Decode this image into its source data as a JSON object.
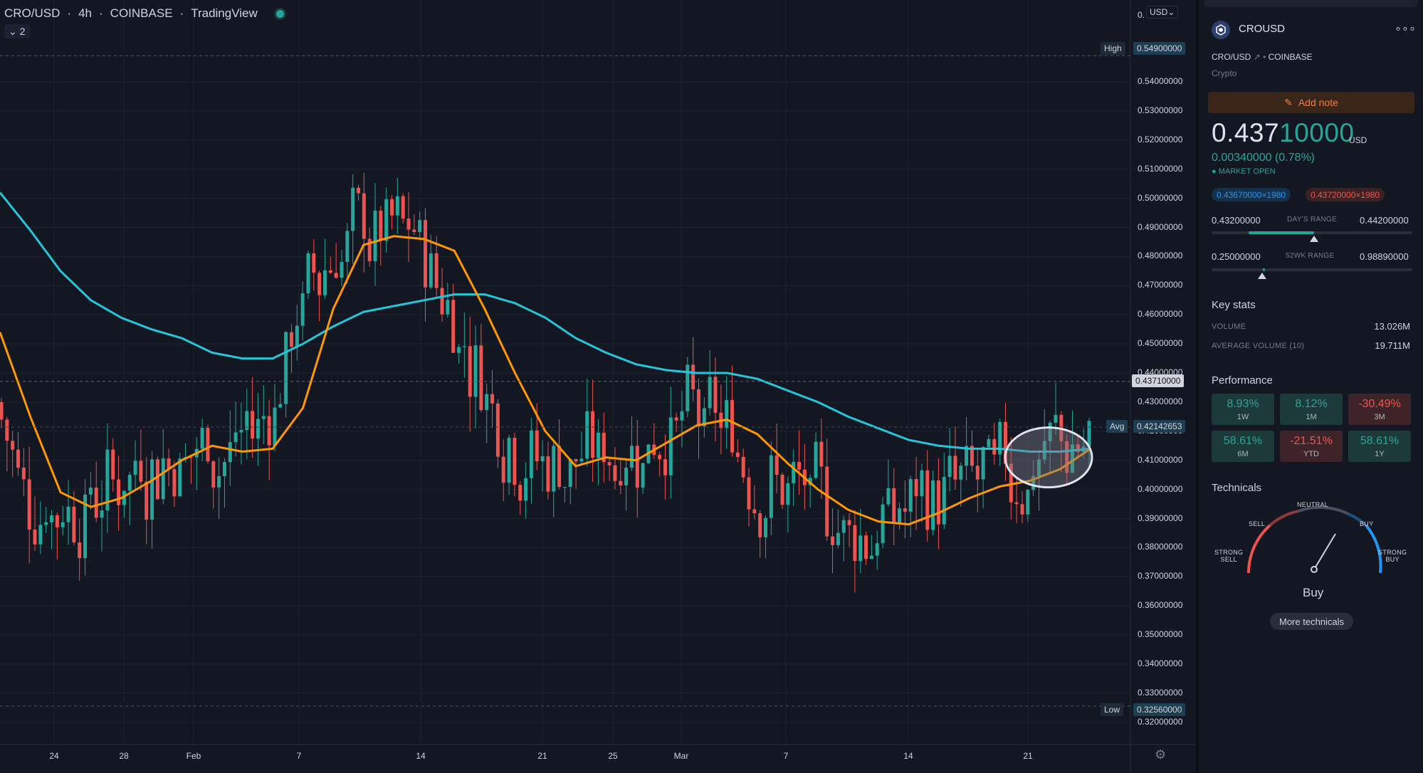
{
  "header": {
    "symbol": "CRO/USD",
    "interval": "4h",
    "exchange": "COINBASE",
    "source": "TradingView",
    "collapse_count": "2",
    "currency_button": "USD"
  },
  "chart_data": {
    "type": "candlestick",
    "x_tick_labels": [
      "24",
      "28",
      "Feb",
      "7",
      "14",
      "21",
      "25",
      "Mar",
      "7",
      "14",
      "21"
    ],
    "y_tick_labels": [
      "0.32000000",
      "0.33000000",
      "0.34000000",
      "0.35000000",
      "0.36000000",
      "0.37000000",
      "0.38000000",
      "0.39000000",
      "0.40000000",
      "0.41000000",
      "0.42000000",
      "0.43000000",
      "0.44000000",
      "0.45000000",
      "0.46000000",
      "0.47000000",
      "0.48000000",
      "0.49000000",
      "0.50000000",
      "0.51000000",
      "0.52000000",
      "0.53000000",
      "0.54000000"
    ],
    "y_range": [
      0.318,
      0.563
    ],
    "high": {
      "label": "High",
      "value": "0.54900000"
    },
    "low": {
      "label": "Low",
      "value": "0.32560000"
    },
    "avg": {
      "label": "Avg",
      "value": "0.42142653"
    },
    "last_price": "0.43710000",
    "partial_top_tick": "0.",
    "up_color": "#26a69a",
    "down_color": "#ef5350",
    "series": [
      {
        "type": "moving-average",
        "color": "#26c6da",
        "values": [
          0.502,
          0.489,
          0.475,
          0.465,
          0.459,
          0.455,
          0.452,
          0.447,
          0.445,
          0.445,
          0.45,
          0.456,
          0.461,
          0.463,
          0.465,
          0.467,
          0.467,
          0.464,
          0.459,
          0.452,
          0.447,
          0.443,
          0.441,
          0.44,
          0.44,
          0.438,
          0.434,
          0.43,
          0.425,
          0.421,
          0.417,
          0.415,
          0.414,
          0.414,
          0.413,
          0.413,
          0.414
        ]
      },
      {
        "type": "moving-average",
        "color": "#ff9800",
        "values": [
          0.454,
          0.425,
          0.399,
          0.394,
          0.397,
          0.403,
          0.41,
          0.415,
          0.413,
          0.414,
          0.428,
          0.462,
          0.484,
          0.487,
          0.486,
          0.482,
          0.462,
          0.44,
          0.42,
          0.408,
          0.411,
          0.41,
          0.416,
          0.422,
          0.424,
          0.419,
          0.409,
          0.4,
          0.393,
          0.389,
          0.388,
          0.392,
          0.397,
          0.401,
          0.403,
          0.407,
          0.414
        ]
      }
    ],
    "annotation": "ellipse"
  },
  "panel": {
    "symbol": "CROUSD",
    "pair": "CRO/USD",
    "exchange": "COINBASE",
    "type": "Crypto",
    "add_note": "Add note",
    "price_main": "0.437",
    "price_tail": "10000",
    "currency": "USD",
    "change": "0.00340000 (0.78%)",
    "market_status": "MARKET OPEN",
    "bid": "0.43670000×1980",
    "ask": "0.43720000×1980",
    "days_range": {
      "low": "0.43200000",
      "label": "DAY'S RANGE",
      "high": "0.44200000",
      "position": 0.51
    },
    "wk52_range": {
      "low": "0.25000000",
      "label": "52WK RANGE",
      "high": "0.98890000",
      "position": 0.25
    },
    "key_stats": {
      "title": "Key stats",
      "volume_label": "VOLUME",
      "volume": "13.026M",
      "avg_volume_label": "AVERAGE VOLUME (10)",
      "avg_volume": "19.711M"
    },
    "performance": {
      "title": "Performance",
      "items": [
        {
          "value": "8.93%",
          "period": "1W"
        },
        {
          "value": "8.12%",
          "period": "1M"
        },
        {
          "value": "-30.49%",
          "period": "3M"
        },
        {
          "value": "58.61%",
          "period": "6M"
        },
        {
          "value": "-21.51%",
          "period": "YTD"
        },
        {
          "value": "58.61%",
          "period": "1Y"
        }
      ]
    },
    "technicals": {
      "title": "Technicals",
      "strong_sell_1": "STRONG",
      "strong_sell_2": "SELL",
      "sell": "SELL",
      "neutral": "NEUTRAL",
      "buy": "BUY",
      "strong_buy_1": "STRONG",
      "strong_buy_2": "BUY",
      "rating": "Buy",
      "more": "More technicals"
    }
  }
}
